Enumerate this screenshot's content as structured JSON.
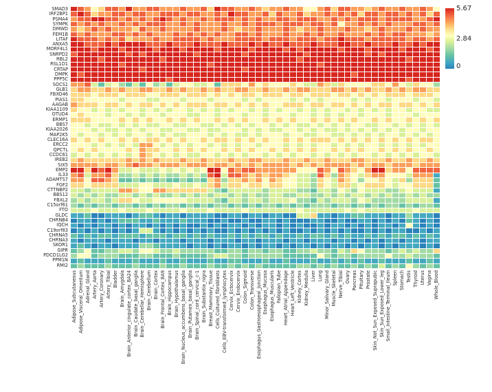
{
  "colorbar": {
    "max_label": "5.67",
    "mid_label": "2.84",
    "min_label": "0"
  },
  "chart_data": {
    "type": "heatmap",
    "title": "",
    "xlabel": "",
    "ylabel": "",
    "value_range": [
      0,
      5.67
    ],
    "legend_position": "top-right",
    "grid_lines": "white 1px between cells",
    "value_encoding": "each row is a 54-char digit string; value = digit/9 * 5.67",
    "colormap_stops": [
      {
        "t": 0.0,
        "color": "#2b83ba"
      },
      {
        "t": 0.1,
        "color": "#41a6c3"
      },
      {
        "t": 0.22,
        "color": "#66c2a5"
      },
      {
        "t": 0.35,
        "color": "#abdda4"
      },
      {
        "t": 0.47,
        "color": "#e6f598"
      },
      {
        "t": 0.55,
        "color": "#ffffbf"
      },
      {
        "t": 0.65,
        "color": "#fee08b"
      },
      {
        "t": 0.75,
        "color": "#fdae61"
      },
      {
        "t": 0.87,
        "color": "#f46d43"
      },
      {
        "t": 1.0,
        "color": "#d7261f"
      }
    ],
    "rows": [
      "SMAD3",
      "IRF2BP1",
      "PSMA4",
      "SYMPK",
      "DMWD",
      "FEM1B",
      "LITAF",
      "ANXA5",
      "MORF4L1",
      "SNRPD2",
      "RBL2",
      "RSL1D1",
      "CRTAP",
      "DMPK",
      "PPP5C",
      "SOCS1",
      "GLB1",
      "FBXO46",
      "PIAS1",
      "AAGAB",
      "KIAA1109",
      "OTUD4",
      "ERMP1",
      "BBS7",
      "KIAA2026",
      "MAP2K5",
      "CLEC16A",
      "ERCC2",
      "QPCTL",
      "CCDC61",
      "IREB2",
      "SIX5",
      "EMP2",
      "IL33",
      "ADAMTS7",
      "FGF2",
      "CTTNBP2",
      "BBS12",
      "FBXL2",
      "C15orf61",
      "FTO",
      "GLDC",
      "CHRNB4",
      "IQCH",
      "C19orf83",
      "CHRNA5",
      "CHRNA3",
      "SKOR1",
      "GIPR",
      "PDCD1LG2",
      "PPM1N",
      "RMI2"
    ],
    "columns": [
      "Adipose_Subcutaneous",
      "Adipose_Visceral_Omentum",
      "Adrenal_Gland",
      "Artery_Aorta",
      "Artery_Coronary",
      "Artery_Tibial",
      "Bladder",
      "Brain_Amygdala",
      "Brain_Anterior_cingulate_cortex_BA24",
      "Brain_Caudate_basal_ganglia",
      "Brain_Cerebellar_Hemisphere",
      "Brain_Cerebellum",
      "Brain_Cortex",
      "Brain_Frontal_Cortex_BA9",
      "Brain_Hippocampus",
      "Brain_Hypothalamus",
      "Brain_Nucleus_accumbens_basal_ganglia",
      "Brain_Putamen_basal_ganglia",
      "Brain_Spinal_cord_cervical_c-1",
      "Brain_Substantia_nigra",
      "Breast_Mammary_Tissue",
      "Cells_Cultured_fibroblasts",
      "Cells_EBV-transformed_lymphocytes",
      "Cervix_Ectocervix",
      "Cervix_Endocervix",
      "Colon_Sigmoid",
      "Colon_Transverse",
      "Esophagus_Gastroesophageal_Junction",
      "Esophagus_Mucosa",
      "Esophagus_Muscularis",
      "Fallopian_Tube",
      "Heart_Atrial_Appendage",
      "Heart_Left_Ventricle",
      "Kidney_Cortex",
      "Kidney_Medulla",
      "Liver",
      "Lung",
      "Minor_Salivary_Gland",
      "Muscle_Skeletal",
      "Nerve_Tibial",
      "Ovary",
      "Pancreas",
      "Pituitary",
      "Prostate",
      "Skin_Not_Sun_Exposed_Suprapubic",
      "Skin_Sun_Exposed_Lower_leg",
      "Small_Intestine_Terminal_Ileum",
      "Spleen",
      "Stomach",
      "Testis",
      "Thyroid",
      "Uterus",
      "Vagina",
      "Whole_Blood"
    ],
    "values_encoded": [
      "987568879778877787786988778767787755786887767877877875",
      "898677887887788878877879887786877867787878688788787868",
      "788998878787898787787888787877887888778787888788887789",
      "878787787878887787877787787888788878878577878787778878",
      "767878777687787777877787677877787677877787767877787877",
      "878777887878777878787877887877787787877877787878877767",
      "988878786777877888878777888878887888788988878888878878",
      "998889899998889888988898889898898889888998898889889899",
      "999899989999899989999899998999989899999899989999899989",
      "899999998989999999899999989999999989999999989899999999",
      "999989999999989999999999999999999899999999999999989999",
      "999999989999999999998999999999999999899999999999999999",
      "999999999989999999999999989999999999999999999999999999",
      "989999999999999999999999999999999999999998999999999999",
      "999999999999998999999999999999999999999999999999989999",
      "778424532425342455445266657565556544764655556657546553",
      "677667676677667676676766776676676776667767676676767766",
      "666566656665566656665656566566656656665665656566656665",
      "665555545554455545554555545455554545455554545545554554",
      "766656656566565656665665656565566656656656565665665656",
      "655454545545454554545454554545455454545545454545545544",
      "565554554545545554455455545545554554545455455545554555",
      "666555565656556565655656565565656556565656556565565656",
      "554544545454455445544545454554545445454545544554545454",
      "555454454545544554454455545454455454544545454545455455",
      "545545454554545445554545445455545544554454545455454545",
      "656565565656656565565665656565565656665656565656565665",
      "555454545477545454554545455455545454554545455454545455",
      "565655556576655656565565656556565656556565655656565565",
      "454545454576545454455454545545454554545454554545454554",
      "676666667676766676676667667766676676676667766676676676",
      "777767767877677767776776767677776767677776767767776777",
      "996989744544454545459958788777777555875876579967758888",
      "784778633434343343438948876767765443863765467755547771",
      "775887622323232232326736676757655443654765355654636662",
      "665666644455444544546746656656655443654664566654556662",
      "443444477655776666664324444434444332443543544433454441",
      "434343344343433434343443434334433443343434434343343433",
      "343443466544555554444324434434445332434443543333344441",
      "323233233232323323232332323233232323332332323233232332",
      "444544454445444454445444454444444544444454544444445444",
      "112001110122101101111001101101100446110112211101131110",
      "011010122211211121110010010011010001100100110101021010",
      "101011010110101010010101101011010100101101010110151010",
      "010101010144101010101001010101010010101010010101100101",
      "212122122212221221212112121221211212212121121212212121",
      "101110111011011101110111011011101101110110101011011011",
      "121011011133211110110101101011010110101101011010111010",
      "235223344355433433333223323323322334332436533323434336",
      "355233322233222322223443323333322222532332333353343332",
      "121112111211121121112112211121121112112121211211121121",
      "232223222322232232223223232322222332323223232423253232"
    ]
  }
}
